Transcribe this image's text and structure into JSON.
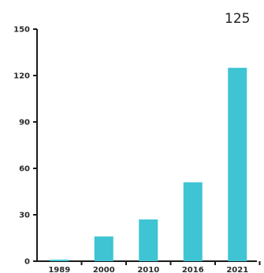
{
  "chart_data": {
    "type": "bar",
    "categories": [
      "1989",
      "2000",
      "2010",
      "2016",
      "2021"
    ],
    "values": [
      1,
      16,
      27,
      51,
      125
    ],
    "title": "",
    "xlabel": "",
    "ylabel": "",
    "ylim": [
      0,
      150
    ],
    "yticks": [
      0,
      30,
      60,
      90,
      120,
      150
    ],
    "annotations": [
      {
        "category": "2021",
        "text": "125"
      }
    ],
    "grid": false,
    "bar_color": "#3ec4d3",
    "axis_color": "#1a1a1a"
  }
}
